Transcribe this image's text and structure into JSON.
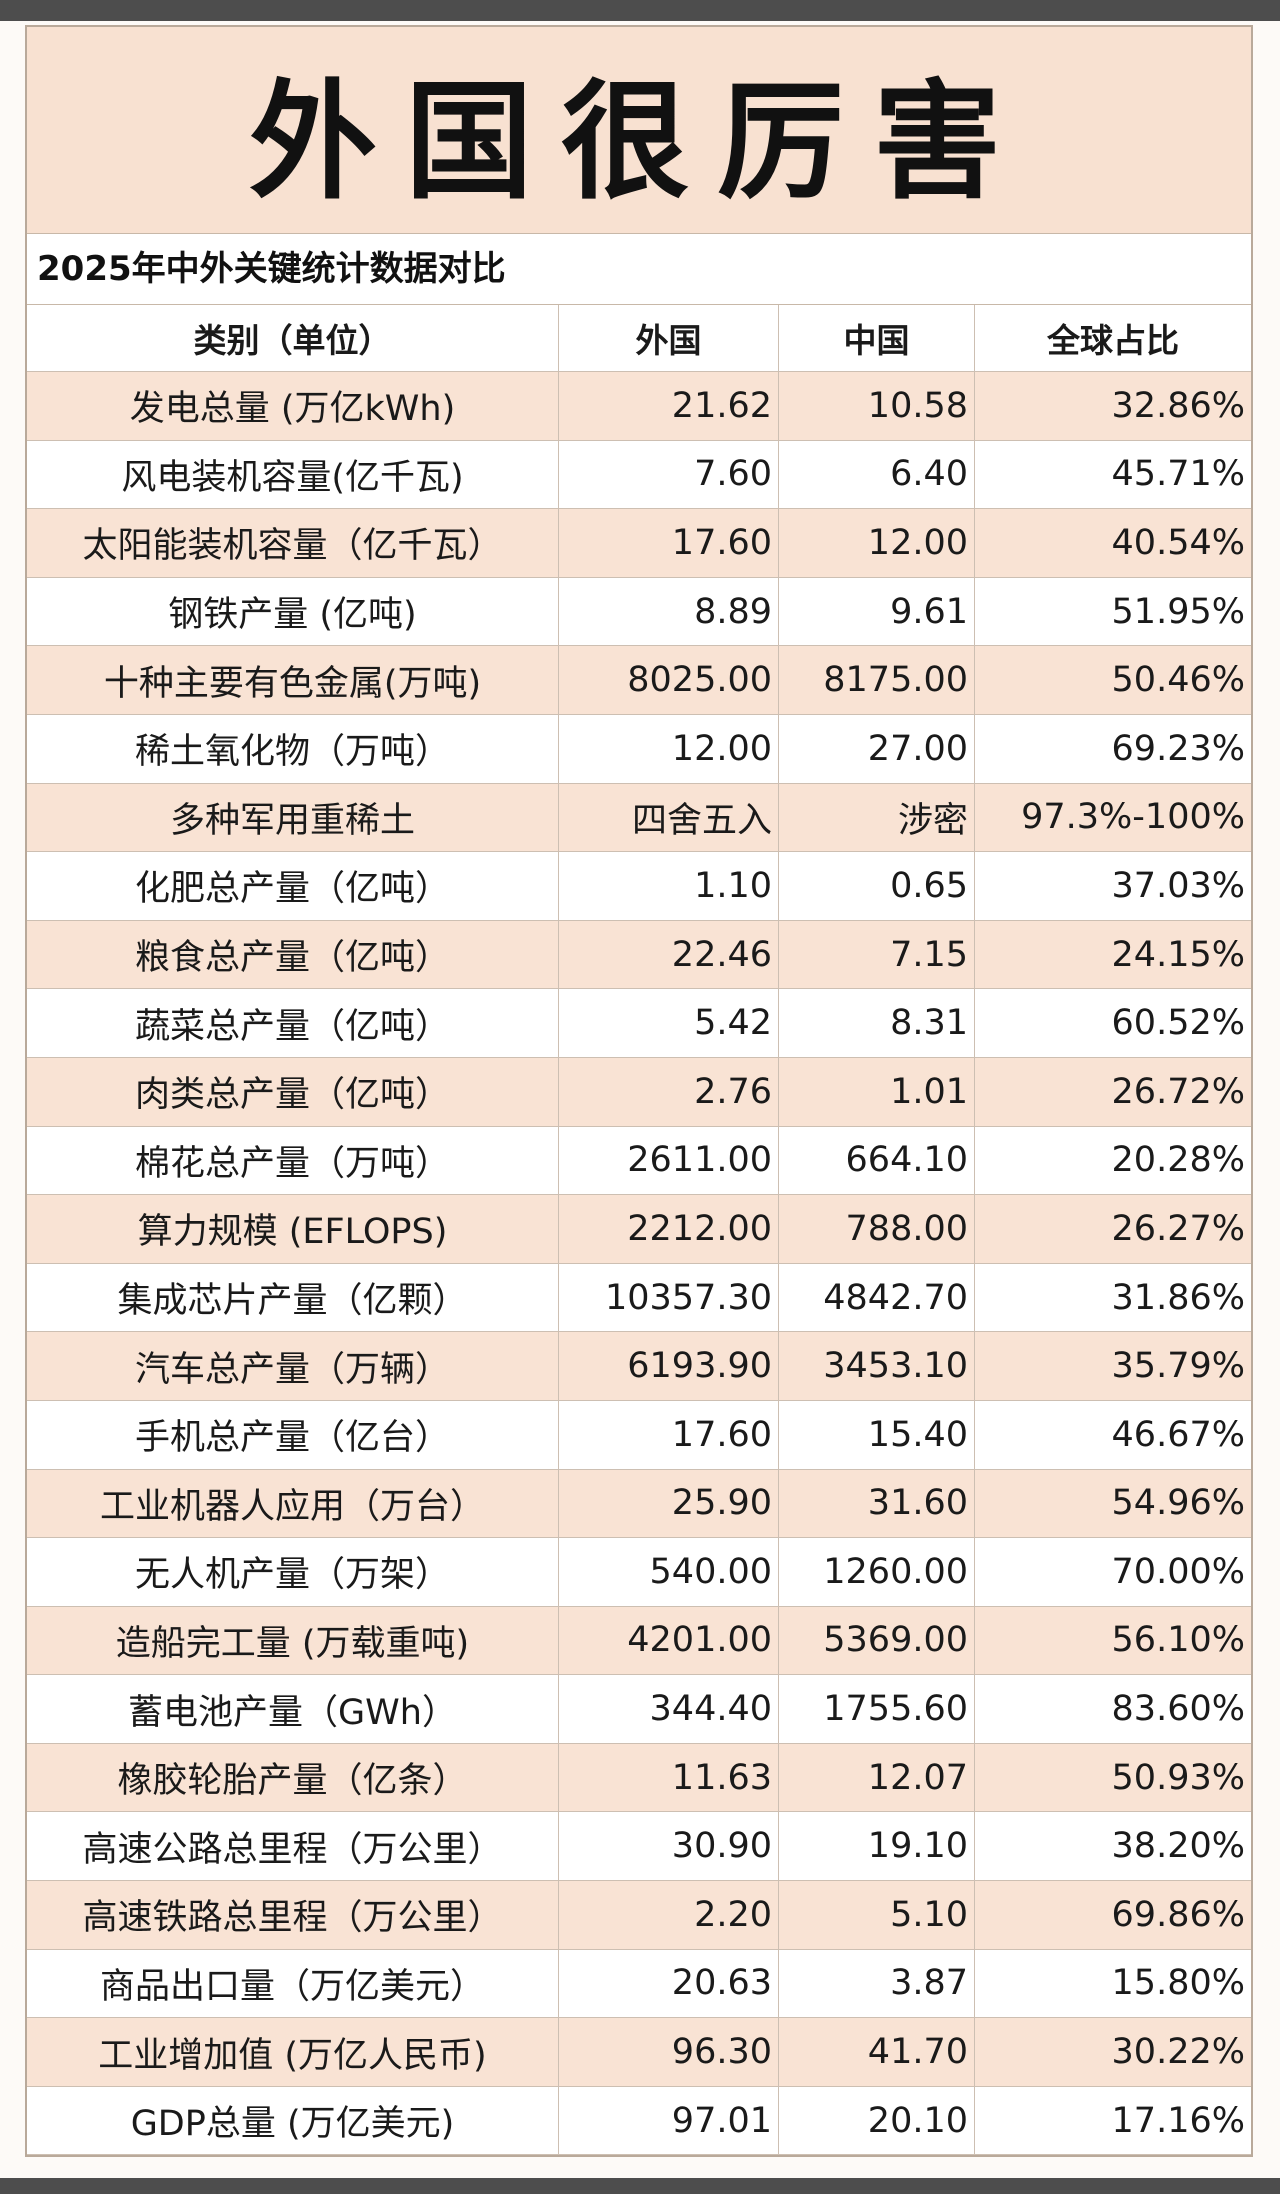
{
  "title": "外国很厉害",
  "subtitle": "2025年中外关键统计数据对比",
  "table": {
    "header": [
      "类别（单位）",
      "外国",
      "中国",
      "全球占比"
    ],
    "rows": [
      [
        "发电总量 (万亿kWh)",
        "21.62",
        "10.58",
        "32.86%"
      ],
      [
        "风电装机容量(亿千瓦)",
        "7.60",
        "6.40",
        "45.71%"
      ],
      [
        "太阳能装机容量（亿千瓦）",
        "17.60",
        "12.00",
        "40.54%"
      ],
      [
        "钢铁产量 (亿吨)",
        "8.89",
        "9.61",
        "51.95%"
      ],
      [
        "十种主要有色金属(万吨)",
        "8025.00",
        "8175.00",
        "50.46%"
      ],
      [
        "稀土氧化物（万吨）",
        "12.00",
        "27.00",
        "69.23%"
      ],
      [
        "多种军用重稀土",
        "四舍五入",
        "涉密",
        "97.3%-100%"
      ],
      [
        "化肥总产量（亿吨）",
        "1.10",
        "0.65",
        "37.03%"
      ],
      [
        "粮食总产量（亿吨）",
        "22.46",
        "7.15",
        "24.15%"
      ],
      [
        "蔬菜总产量（亿吨）",
        "5.42",
        "8.31",
        "60.52%"
      ],
      [
        "肉类总产量（亿吨）",
        "2.76",
        "1.01",
        "26.72%"
      ],
      [
        "棉花总产量（万吨）",
        "2611.00",
        "664.10",
        "20.28%"
      ],
      [
        "算力规模 (EFLOPS)",
        "2212.00",
        "788.00",
        "26.27%"
      ],
      [
        "集成芯片产量（亿颗）",
        "10357.30",
        "4842.70",
        "31.86%"
      ],
      [
        "汽车总产量（万辆）",
        "6193.90",
        "3453.10",
        "35.79%"
      ],
      [
        "手机总产量（亿台）",
        "17.60",
        "15.40",
        "46.67%"
      ],
      [
        "工业机器人应用（万台）",
        "25.90",
        "31.60",
        "54.96%"
      ],
      [
        "无人机产量（万架）",
        "540.00",
        "1260.00",
        "70.00%"
      ],
      [
        "造船完工量 (万载重吨)",
        "4201.00",
        "5369.00",
        "56.10%"
      ],
      [
        "蓄电池产量（GWh）",
        "344.40",
        "1755.60",
        "83.60%"
      ],
      [
        "橡胶轮胎产量（亿条）",
        "11.63",
        "12.07",
        "50.93%"
      ],
      [
        "高速公路总里程（万公里）",
        "30.90",
        "19.10",
        "38.20%"
      ],
      [
        "高速铁路总里程（万公里）",
        "2.20",
        "5.10",
        "69.86%"
      ],
      [
        "商品出口量（万亿美元）",
        "20.63",
        "3.87",
        "15.80%"
      ],
      [
        "工业增加值 (万亿人民币)",
        "96.30",
        "41.70",
        "30.22%"
      ],
      [
        "GDP总量 (万亿美元)",
        "97.01",
        "20.10",
        "17.16%"
      ]
    ]
  }
}
